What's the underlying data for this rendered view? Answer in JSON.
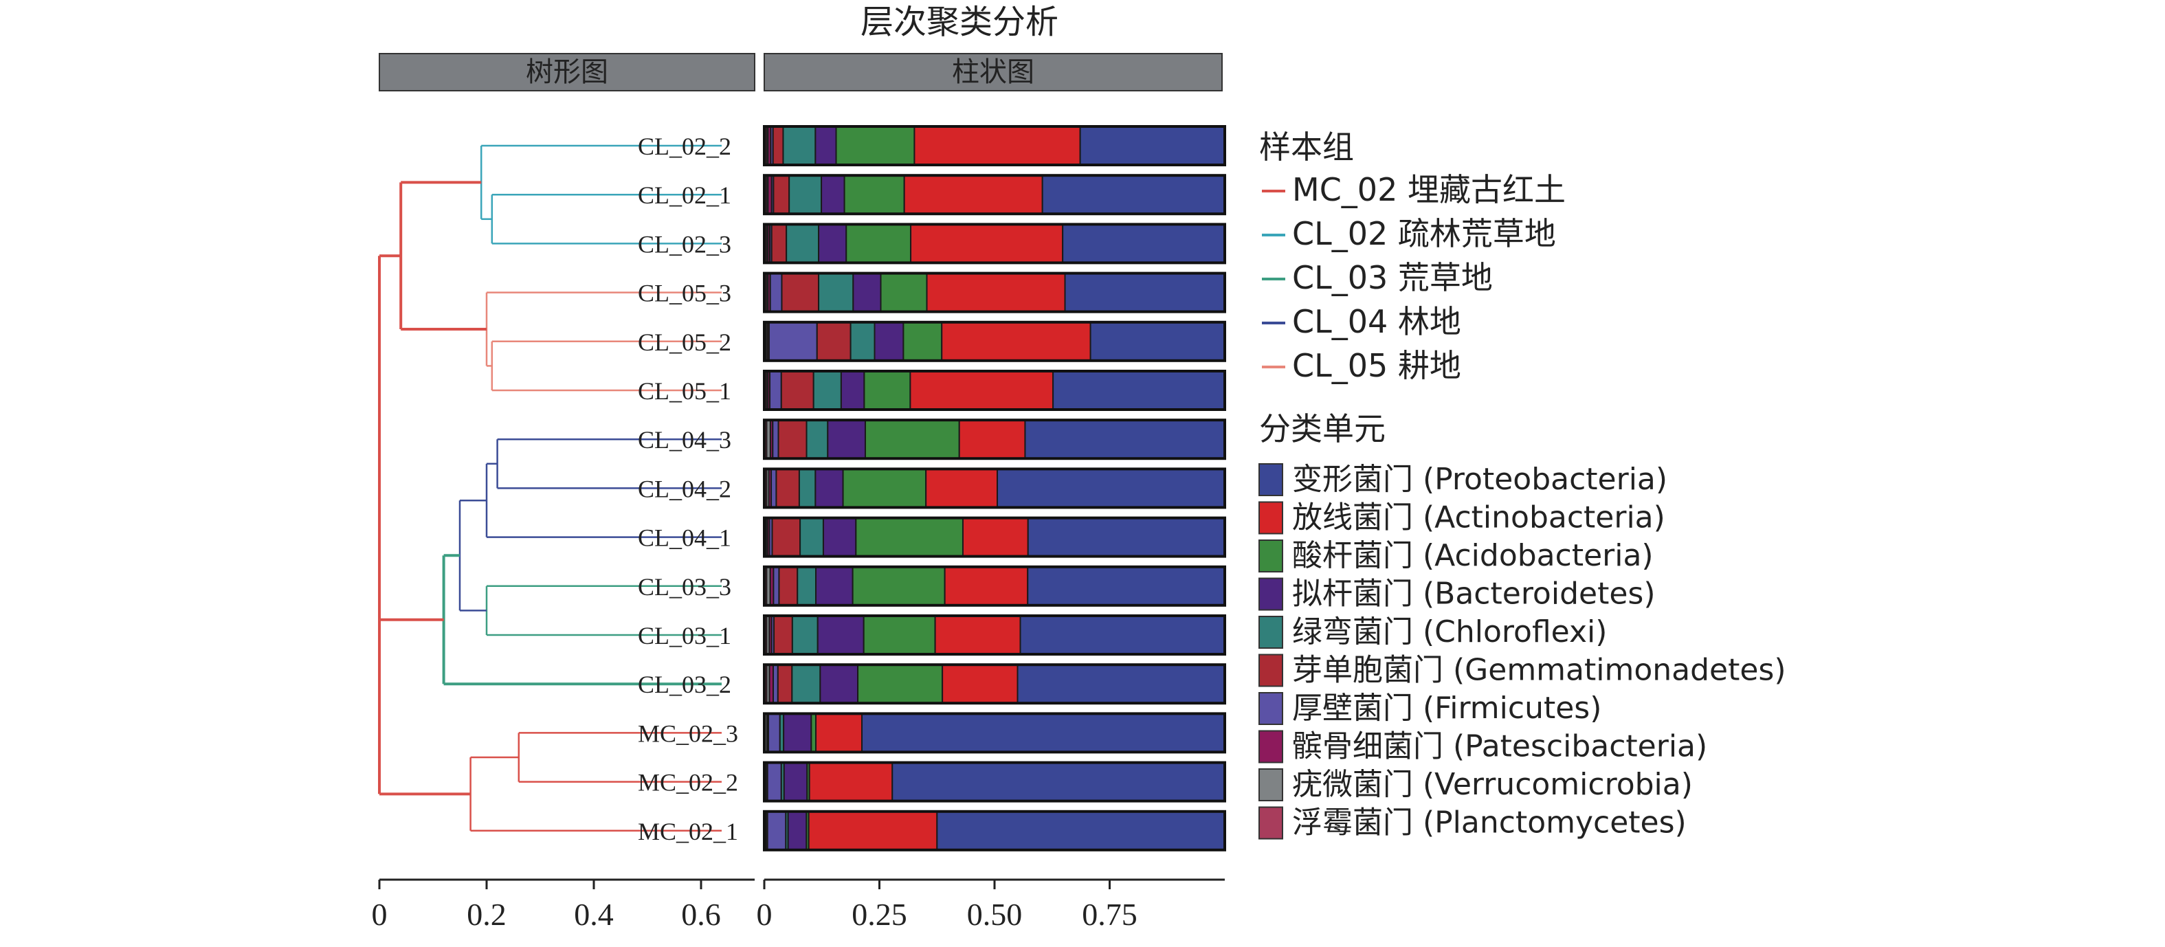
{
  "figure_title": "层次聚类分析",
  "panel_titles": {
    "dendrogram": "树形图",
    "bars": "柱状图"
  },
  "legend": {
    "groups_title": "样本组",
    "taxa_title": "分类单元",
    "groups": [
      {
        "label": "MC_02 埋藏古红土",
        "color": "#d9504a"
      },
      {
        "label": "CL_02 疏林荒草地",
        "color": "#3aa5b9"
      },
      {
        "label": "CL_03 荒草地",
        "color": "#3d9e82"
      },
      {
        "label": "CL_04 林地",
        "color": "#3b4c96"
      },
      {
        "label": "CL_05 耕地",
        "color": "#e8877a"
      }
    ]
  },
  "chart_data": {
    "type": "bar",
    "stacked": true,
    "orientation": "horizontal",
    "title": "层次聚类分析",
    "xlim": [
      0,
      1
    ],
    "xticks": [
      0,
      0.25,
      0.5,
      0.75
    ],
    "xtick_labels": [
      "0",
      "0.25",
      "0.50",
      "0.75"
    ],
    "categories": [
      "CL_02_2",
      "CL_02_1",
      "CL_02_3",
      "CL_05_3",
      "CL_05_2",
      "CL_05_1",
      "CL_04_3",
      "CL_04_2",
      "CL_04_1",
      "CL_03_3",
      "CL_03_1",
      "CL_03_2",
      "MC_02_3",
      "MC_02_2",
      "MC_02_1"
    ],
    "series": [
      {
        "name": "浮霉菌门 (Planctomycetes)",
        "color": "#a83d5c",
        "values": [
          0.005,
          0.005,
          0.005,
          0.005,
          0.004,
          0.005,
          0.005,
          0.005,
          0.004,
          0.005,
          0.005,
          0.005,
          0.002,
          0.002,
          0.002
        ]
      },
      {
        "name": "疣微菌门 (Verrucomicrobia)",
        "color": "#7f8385",
        "values": [
          0.003,
          0.003,
          0.003,
          0.003,
          0.003,
          0.003,
          0.008,
          0.005,
          0.003,
          0.008,
          0.006,
          0.006,
          0.004,
          0.003,
          0.003
        ]
      },
      {
        "name": "髌骨细菌门 (Patescibacteria)",
        "color": "#8d1a5c",
        "values": [
          0.006,
          0.008,
          0.004,
          0.005,
          0.003,
          0.004,
          0.005,
          0.005,
          0.004,
          0.007,
          0.005,
          0.008,
          0.003,
          0.002,
          0.002
        ]
      },
      {
        "name": "厚壁菌门 (Firmicutes)",
        "color": "#5b52a6",
        "values": [
          0.005,
          0.004,
          0.004,
          0.025,
          0.1,
          0.025,
          0.012,
          0.011,
          0.006,
          0.012,
          0.005,
          0.01,
          0.025,
          0.03,
          0.04
        ]
      },
      {
        "name": "芽单胞菌门 (Gemmatimonadetes)",
        "color": "#ab2b34",
        "values": [
          0.022,
          0.034,
          0.032,
          0.08,
          0.07,
          0.07,
          0.06,
          0.05,
          0.06,
          0.04,
          0.04,
          0.03,
          0.0,
          0.0,
          0.0
        ]
      },
      {
        "name": "绿弯菌门 (Chloroflexi)",
        "color": "#31807a",
        "values": [
          0.07,
          0.07,
          0.07,
          0.075,
          0.05,
          0.06,
          0.045,
          0.035,
          0.05,
          0.04,
          0.055,
          0.06,
          0.008,
          0.006,
          0.005
        ]
      },
      {
        "name": "拟杆菌门 (Bacteroidetes)",
        "color": "#4d2680",
        "values": [
          0.045,
          0.05,
          0.06,
          0.06,
          0.06,
          0.05,
          0.08,
          0.06,
          0.07,
          0.08,
          0.1,
          0.08,
          0.06,
          0.05,
          0.04
        ]
      },
      {
        "name": "酸杆菌门 (Acidobacteria)",
        "color": "#3c8b3f",
        "values": [
          0.17,
          0.13,
          0.14,
          0.1,
          0.08,
          0.1,
          0.2,
          0.18,
          0.23,
          0.2,
          0.155,
          0.18,
          0.01,
          0.005,
          0.005
        ]
      },
      {
        "name": "放线菌门 (Actinobacteria)",
        "color": "#d62528",
        "values": [
          0.36,
          0.3,
          0.33,
          0.3,
          0.31,
          0.31,
          0.14,
          0.155,
          0.14,
          0.18,
          0.185,
          0.16,
          0.1,
          0.18,
          0.28
        ]
      },
      {
        "name": "变形菌门 (Proteobacteria)",
        "color": "#3a4795",
        "values": [
          0.314,
          0.396,
          0.352,
          0.347,
          0.28,
          0.373,
          0.425,
          0.494,
          0.423,
          0.428,
          0.444,
          0.441,
          0.788,
          0.722,
          0.628
        ]
      }
    ],
    "dendrogram": {
      "xlim": [
        0,
        0.7
      ],
      "xticks": [
        0,
        0.2,
        0.4,
        0.6
      ],
      "xtick_labels": [
        "0",
        "0.2",
        "0.4",
        "0.6"
      ]
    }
  }
}
